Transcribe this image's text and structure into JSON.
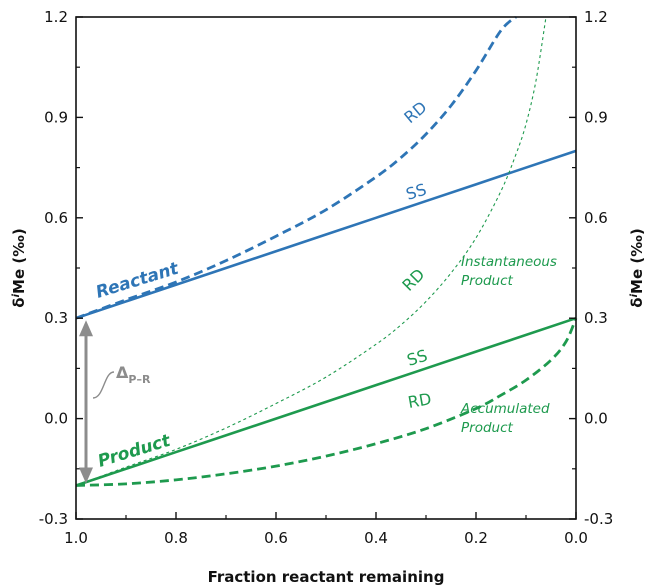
{
  "chart_data": {
    "type": "line",
    "xlabel": "Fraction reactant remaining",
    "ylabel_main": "δ",
    "ylabel_sup": "i",
    "ylabel_rest": "Me (‰)",
    "xlim": [
      1.0,
      0.0
    ],
    "ylim": [
      -0.3,
      1.2
    ],
    "x_ticks": [
      "1.0",
      "0.8",
      "0.6",
      "0.4",
      "0.2",
      "0.0"
    ],
    "x_tick_values": [
      1.0,
      0.8,
      0.6,
      0.4,
      0.2,
      0.0
    ],
    "y_ticks": [
      "-0.3",
      "0.0",
      "0.3",
      "0.6",
      "0.9",
      "1.2"
    ],
    "y_tick_values": [
      -0.3,
      0.0,
      0.3,
      0.6,
      0.9,
      1.2
    ],
    "colors": {
      "reactant": "#2e75b6",
      "product": "#1e9a4e",
      "arrow": "#8c8c8c"
    },
    "series": [
      {
        "id": "reactant_ss",
        "label": "SS",
        "style": "solid",
        "color": "#2e75b6",
        "x": [
          1.0,
          0.8,
          0.6,
          0.4,
          0.2,
          0.0
        ],
        "y": [
          0.3,
          0.4,
          0.5,
          0.6,
          0.7,
          0.8
        ]
      },
      {
        "id": "reactant_rd",
        "label": "RD",
        "style": "dashed",
        "color": "#2e75b6",
        "x": [
          1.0,
          0.9,
          0.8,
          0.7,
          0.6,
          0.5,
          0.4,
          0.35,
          0.3,
          0.25,
          0.2,
          0.15,
          0.12
        ],
        "y": [
          0.3,
          0.355,
          0.408,
          0.472,
          0.545,
          0.624,
          0.722,
          0.78,
          0.85,
          0.935,
          1.04,
          1.16,
          1.2
        ]
      },
      {
        "id": "instantaneous_product",
        "label": "RD",
        "style": "thin-dashed",
        "color": "#1e9a4e",
        "x": [
          1.0,
          0.9,
          0.8,
          0.7,
          0.6,
          0.5,
          0.4,
          0.35,
          0.3,
          0.25,
          0.2,
          0.15,
          0.12,
          0.1,
          0.08,
          0.06
        ],
        "y": [
          -0.2,
          -0.145,
          -0.092,
          -0.028,
          0.045,
          0.124,
          0.222,
          0.28,
          0.35,
          0.435,
          0.54,
          0.68,
          0.79,
          0.88,
          1.01,
          1.2
        ]
      },
      {
        "id": "product_ss",
        "label": "SS",
        "style": "solid",
        "color": "#1e9a4e",
        "x": [
          1.0,
          0.8,
          0.6,
          0.4,
          0.2,
          0.0
        ],
        "y": [
          -0.2,
          -0.1,
          0.0,
          0.1,
          0.2,
          0.3
        ]
      },
      {
        "id": "accumulated_product",
        "label": "RD",
        "style": "dashed",
        "color": "#1e9a4e",
        "x": [
          1.0,
          0.9,
          0.8,
          0.7,
          0.6,
          0.5,
          0.4,
          0.3,
          0.2,
          0.15,
          0.1,
          0.05,
          0.02,
          0.0
        ],
        "y": [
          -0.2,
          -0.195,
          -0.183,
          -0.165,
          -0.142,
          -0.112,
          -0.075,
          -0.03,
          0.03,
          0.07,
          0.115,
          0.175,
          0.23,
          0.3
        ]
      }
    ],
    "annotations": {
      "reactant": "Reactant",
      "product": "Product",
      "ss_reactant": "SS",
      "rd_reactant": "RD",
      "ss_product": "SS",
      "rd_inst": "RD",
      "rd_accum": "RD",
      "inst_line1": "Instantaneous",
      "inst_line2": "Product",
      "accum_line1": "Accumulated",
      "accum_line2": "Product",
      "delta_main": "Δ",
      "delta_sub": "P–R",
      "arrow_from": 0.3,
      "arrow_to": -0.2,
      "arrow_x": 0.98
    },
    "grid": false,
    "legend": "none"
  }
}
